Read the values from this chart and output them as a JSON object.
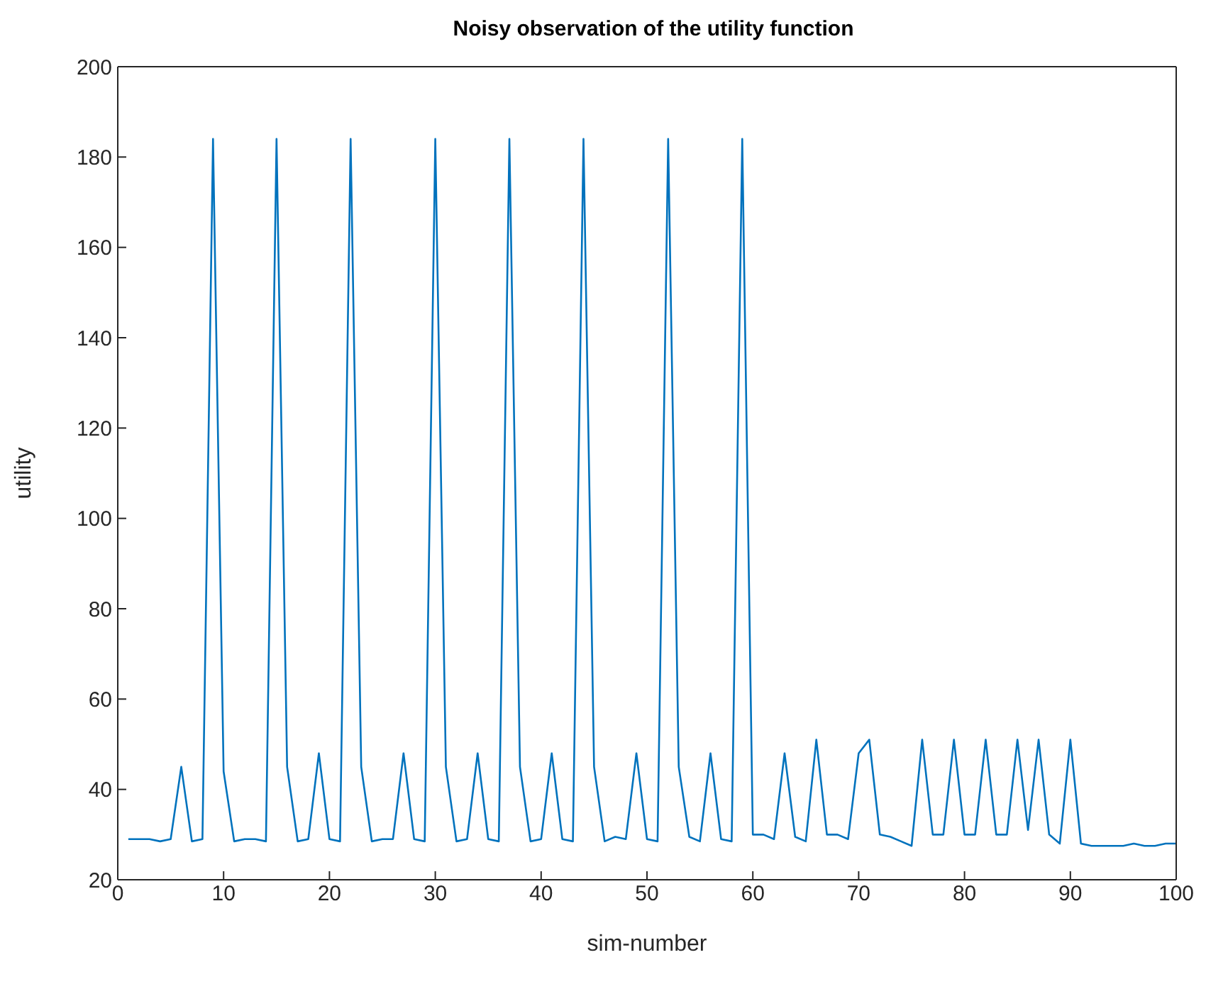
{
  "chart_data": {
    "type": "line",
    "title": "Noisy observation of the utility function",
    "xlabel": "sim-number",
    "ylabel": "utility",
    "x": [
      1,
      2,
      3,
      4,
      5,
      6,
      7,
      8,
      9,
      10,
      11,
      12,
      13,
      14,
      15,
      16,
      17,
      18,
      19,
      20,
      21,
      22,
      23,
      24,
      25,
      26,
      27,
      28,
      29,
      30,
      31,
      32,
      33,
      34,
      35,
      36,
      37,
      38,
      39,
      40,
      41,
      42,
      43,
      44,
      45,
      46,
      47,
      48,
      49,
      50,
      51,
      52,
      53,
      54,
      55,
      56,
      57,
      58,
      59,
      60,
      61,
      62,
      63,
      64,
      65,
      66,
      67,
      68,
      69,
      70,
      71,
      72,
      73,
      74,
      75,
      76,
      77,
      78,
      79,
      80,
      81,
      82,
      83,
      84,
      85,
      86,
      87,
      88,
      89,
      90,
      91,
      92,
      93,
      94,
      95,
      96,
      97,
      98,
      99,
      100
    ],
    "series": [
      {
        "color": "#0072bd",
        "values": [
          29,
          29,
          29,
          28.5,
          29,
          45,
          28.5,
          29,
          184,
          44,
          28.5,
          29,
          29,
          28.5,
          184,
          45,
          28.5,
          29,
          48,
          29,
          28.5,
          184,
          45,
          28.5,
          29,
          29,
          48,
          29,
          28.5,
          184,
          45,
          28.5,
          29,
          48,
          29,
          28.5,
          184,
          45,
          28.5,
          29,
          48,
          29,
          28.5,
          184,
          45,
          28.5,
          29.5,
          29,
          48,
          29,
          28.5,
          184,
          45,
          29.5,
          28.5,
          48,
          29,
          28.5,
          184,
          30,
          30,
          29,
          48,
          29.5,
          28.5,
          51,
          30,
          30,
          29,
          48,
          51,
          30,
          29.5,
          28.5,
          27.5,
          51,
          30,
          30,
          51,
          30,
          30,
          51,
          30,
          30,
          51,
          31,
          51,
          30,
          28,
          51,
          28,
          27.5,
          27.5,
          27.5,
          27.5,
          28,
          27.5,
          27.5,
          28,
          28
        ]
      }
    ],
    "xlim": [
      0,
      100
    ],
    "xticks": [
      0,
      10,
      20,
      30,
      40,
      50,
      60,
      70,
      80,
      90,
      100
    ],
    "ylim": [
      20,
      200
    ],
    "yticks": [
      20,
      40,
      60,
      80,
      100,
      120,
      140,
      160,
      180,
      200
    ],
    "grid": false,
    "legend": false,
    "marker": "none",
    "line_style": "solid"
  }
}
